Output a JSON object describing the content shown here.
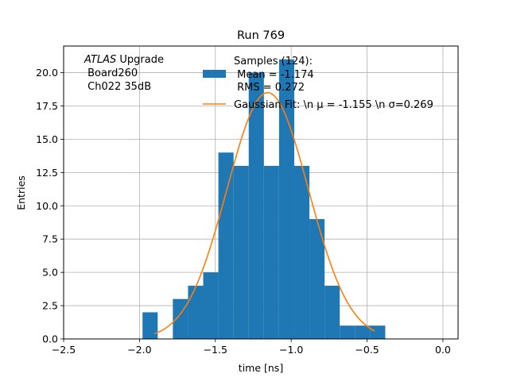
{
  "chart_data": {
    "type": "histogram",
    "title": "Run 769",
    "xlabel": "time [ns]",
    "ylabel": "Entries",
    "xlim": [
      -2.5,
      0.1
    ],
    "ylim": [
      0,
      22
    ],
    "grid": true,
    "x_ticks": [
      "-2.5",
      "-2.0",
      "-1.5",
      "-1.0",
      "-0.5",
      "0.0"
    ],
    "x_tick_values": [
      -2.5,
      -2.0,
      -1.5,
      -1.0,
      -0.5,
      0.0
    ],
    "y_ticks": [
      "0.0",
      "2.5",
      "5.0",
      "7.5",
      "10.0",
      "12.5",
      "15.0",
      "17.5",
      "20.0"
    ],
    "y_tick_values": [
      0,
      2.5,
      5,
      7.5,
      10,
      12.5,
      15,
      17.5,
      20
    ],
    "bars_color": "#1f77b4",
    "fit_color": "#ff7f0e",
    "bins": [
      {
        "x0": -1.98,
        "x1": -1.88,
        "count": 2
      },
      {
        "x0": -1.88,
        "x1": -1.78,
        "count": 0
      },
      {
        "x0": -1.78,
        "x1": -1.68,
        "count": 3
      },
      {
        "x0": -1.68,
        "x1": -1.58,
        "count": 4
      },
      {
        "x0": -1.58,
        "x1": -1.48,
        "count": 5
      },
      {
        "x0": -1.48,
        "x1": -1.38,
        "count": 14
      },
      {
        "x0": -1.38,
        "x1": -1.28,
        "count": 13
      },
      {
        "x0": -1.28,
        "x1": -1.18,
        "count": 20
      },
      {
        "x0": -1.18,
        "x1": -1.08,
        "count": 13
      },
      {
        "x0": -1.08,
        "x1": -0.98,
        "count": 21
      },
      {
        "x0": -0.98,
        "x1": -0.88,
        "count": 13
      },
      {
        "x0": -0.88,
        "x1": -0.78,
        "count": 9
      },
      {
        "x0": -0.78,
        "x1": -0.68,
        "count": 4
      },
      {
        "x0": -0.68,
        "x1": -0.58,
        "count": 1
      },
      {
        "x0": -0.58,
        "x1": -0.48,
        "count": 1
      },
      {
        "x0": -0.48,
        "x1": -0.38,
        "count": 1
      }
    ],
    "fit": {
      "amplitude": 18.5,
      "mean": -1.155,
      "sigma": 0.269,
      "x_range": [
        -1.9,
        -0.45
      ]
    },
    "annotation_lines": [
      "ATLAS Upgrade",
      " Board260",
      " Ch022 35dB"
    ],
    "annotation_italic": "ATLAS",
    "legend": [
      {
        "kind": "patch",
        "lines": [
          "Samples (124):",
          " Mean = -1.174",
          " RMS = 0.272"
        ]
      },
      {
        "kind": "line",
        "lines": [
          "Gaussian Fit: \\n μ = -1.155 \\n σ=0.269"
        ]
      }
    ]
  }
}
